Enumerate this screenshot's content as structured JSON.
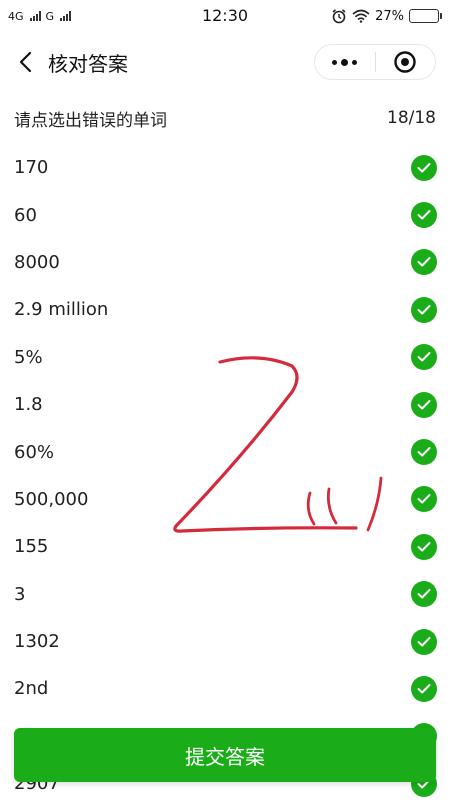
{
  "status_bar": {
    "network_1": "4G",
    "network_2": "G",
    "time": "12:30",
    "battery_percent": "27%",
    "battery_level": 0.27,
    "battery_color": "#f2c200"
  },
  "nav": {
    "title": "核对答案",
    "back_icon": "chevron-left-icon",
    "more_icon": "more-dots-icon",
    "close_icon": "target-circle-icon"
  },
  "instruction": {
    "text": "请点选出错误的单词",
    "count": "18/18"
  },
  "items": [
    {
      "label": "170"
    },
    {
      "label": "60"
    },
    {
      "label": "8000"
    },
    {
      "label": "2.9 million"
    },
    {
      "label": "5%"
    },
    {
      "label": "1.8"
    },
    {
      "label": "60%"
    },
    {
      "label": "500,000"
    },
    {
      "label": "155"
    },
    {
      "label": "3"
    },
    {
      "label": "1302"
    },
    {
      "label": "2nd"
    },
    {
      "label": ""
    },
    {
      "label": "2907"
    }
  ],
  "submit_label": "提交答案",
  "colors": {
    "accent": "#1aad19",
    "scribble": "#d42a3c"
  }
}
